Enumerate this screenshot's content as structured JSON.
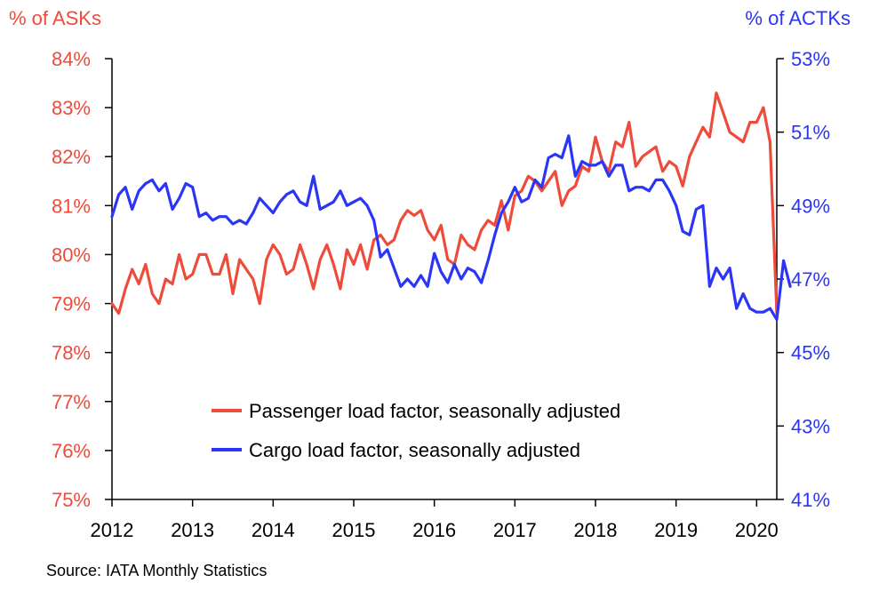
{
  "chart_data": {
    "type": "line",
    "left_axis_label": "% of ASKs",
    "right_axis_label": "% of ACTKs",
    "left_ylim": [
      75,
      84
    ],
    "right_ylim": [
      41,
      53
    ],
    "left_ticks": [
      "75%",
      "76%",
      "77%",
      "78%",
      "79%",
      "80%",
      "81%",
      "82%",
      "83%",
      "84%"
    ],
    "right_ticks": [
      "41%",
      "43%",
      "45%",
      "47%",
      "49%",
      "51%",
      "53%"
    ],
    "x_ticks": [
      "2012",
      "2013",
      "2014",
      "2015",
      "2016",
      "2017",
      "2018",
      "2019",
      "2020"
    ],
    "xlim": [
      2012,
      2020.25
    ],
    "legend_position": "lower-center",
    "grid": false,
    "colors": {
      "passenger": "#ee4b3b",
      "cargo": "#2b35f5",
      "left_axis": "#ee4b3b",
      "right_axis": "#2b35f5"
    },
    "series": [
      {
        "name": "Passenger load factor, seasonally adjusted",
        "axis": "left",
        "start_year": 2012,
        "step_months": 1,
        "values": [
          79.0,
          78.8,
          79.3,
          79.7,
          79.4,
          79.8,
          79.2,
          79.0,
          79.5,
          79.4,
          80.0,
          79.5,
          79.6,
          80.0,
          80.0,
          79.6,
          79.6,
          80.0,
          79.2,
          79.9,
          79.7,
          79.5,
          79.0,
          79.9,
          80.2,
          80.0,
          79.6,
          79.7,
          80.2,
          79.8,
          79.3,
          79.9,
          80.2,
          79.8,
          79.3,
          80.1,
          79.8,
          80.2,
          79.7,
          80.3,
          80.4,
          80.2,
          80.3,
          80.7,
          80.9,
          80.8,
          80.9,
          80.5,
          80.3,
          80.6,
          79.9,
          79.8,
          80.4,
          80.2,
          80.1,
          80.5,
          80.7,
          80.6,
          81.1,
          80.5,
          81.2,
          81.3,
          81.6,
          81.5,
          81.3,
          81.5,
          81.7,
          81.0,
          81.3,
          81.4,
          81.8,
          81.7,
          82.4,
          81.9,
          81.7,
          82.3,
          82.2,
          82.7,
          81.8,
          82.0,
          82.1,
          82.2,
          81.7,
          81.9,
          81.8,
          81.4,
          82.0,
          82.3,
          82.6,
          82.4,
          83.3,
          82.9,
          82.5,
          82.4,
          82.3,
          82.7,
          82.7,
          83.0,
          82.3,
          78.8
        ]
      },
      {
        "name": "Cargo load factor, seasonally adjusted",
        "axis": "right",
        "start_year": 2012,
        "step_months": 1,
        "values": [
          48.7,
          49.3,
          49.5,
          48.9,
          49.4,
          49.6,
          49.7,
          49.4,
          49.6,
          48.9,
          49.2,
          49.6,
          49.5,
          48.7,
          48.8,
          48.6,
          48.7,
          48.7,
          48.5,
          48.6,
          48.5,
          48.8,
          49.2,
          49.0,
          48.8,
          49.1,
          49.3,
          49.4,
          49.1,
          49.0,
          49.8,
          48.9,
          49.0,
          49.1,
          49.4,
          49.0,
          49.1,
          49.2,
          49.0,
          48.6,
          47.6,
          47.8,
          47.3,
          46.8,
          47.0,
          46.8,
          47.1,
          46.8,
          47.7,
          47.2,
          46.9,
          47.4,
          47.0,
          47.3,
          47.2,
          46.9,
          47.5,
          48.2,
          48.8,
          49.1,
          49.5,
          49.1,
          49.2,
          49.7,
          49.5,
          50.3,
          50.4,
          50.3,
          50.9,
          49.8,
          50.2,
          50.1,
          50.1,
          50.2,
          49.8,
          50.1,
          50.1,
          49.4,
          49.5,
          49.5,
          49.4,
          49.7,
          49.7,
          49.4,
          49.0,
          48.3,
          48.2,
          48.9,
          49.0,
          46.8,
          47.3,
          47.0,
          47.3,
          46.2,
          46.6,
          46.2,
          46.1,
          46.1,
          46.2,
          45.9,
          47.5,
          46.8
        ]
      }
    ],
    "source": "Source: IATA Monthly Statistics"
  }
}
